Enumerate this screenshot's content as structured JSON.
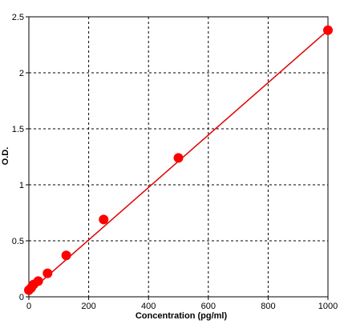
{
  "chart_data": {
    "type": "scatter",
    "title": "",
    "xlabel": "Concentration (pg/ml)",
    "ylabel": "O.D.",
    "xlim": [
      0,
      1000
    ],
    "ylim": [
      0,
      2.5
    ],
    "xticks": [
      0,
      200,
      400,
      600,
      800,
      1000
    ],
    "xtick_labels": [
      "0",
      "200",
      "400",
      "600",
      "800",
      "1000"
    ],
    "yticks": [
      0,
      0.5,
      1,
      1.5,
      2,
      2.5
    ],
    "ytick_labels": [
      "0",
      "0.5",
      "1",
      "1.5",
      "2",
      "2.5"
    ],
    "grid": true,
    "series": [
      {
        "x": [
          0,
          7.8,
          15.6,
          31.25,
          62.5,
          125,
          250,
          500,
          1000
        ],
        "y": [
          0.06,
          0.08,
          0.11,
          0.14,
          0.21,
          0.37,
          0.69,
          1.24,
          2.38
        ]
      }
    ],
    "fit_line": {
      "x": [
        0,
        1000
      ],
      "y": [
        0.04,
        2.38
      ]
    },
    "colors": {
      "series": "#ff0000",
      "fit": "#e00000",
      "grid": "#000000",
      "axis": "#000000"
    }
  }
}
